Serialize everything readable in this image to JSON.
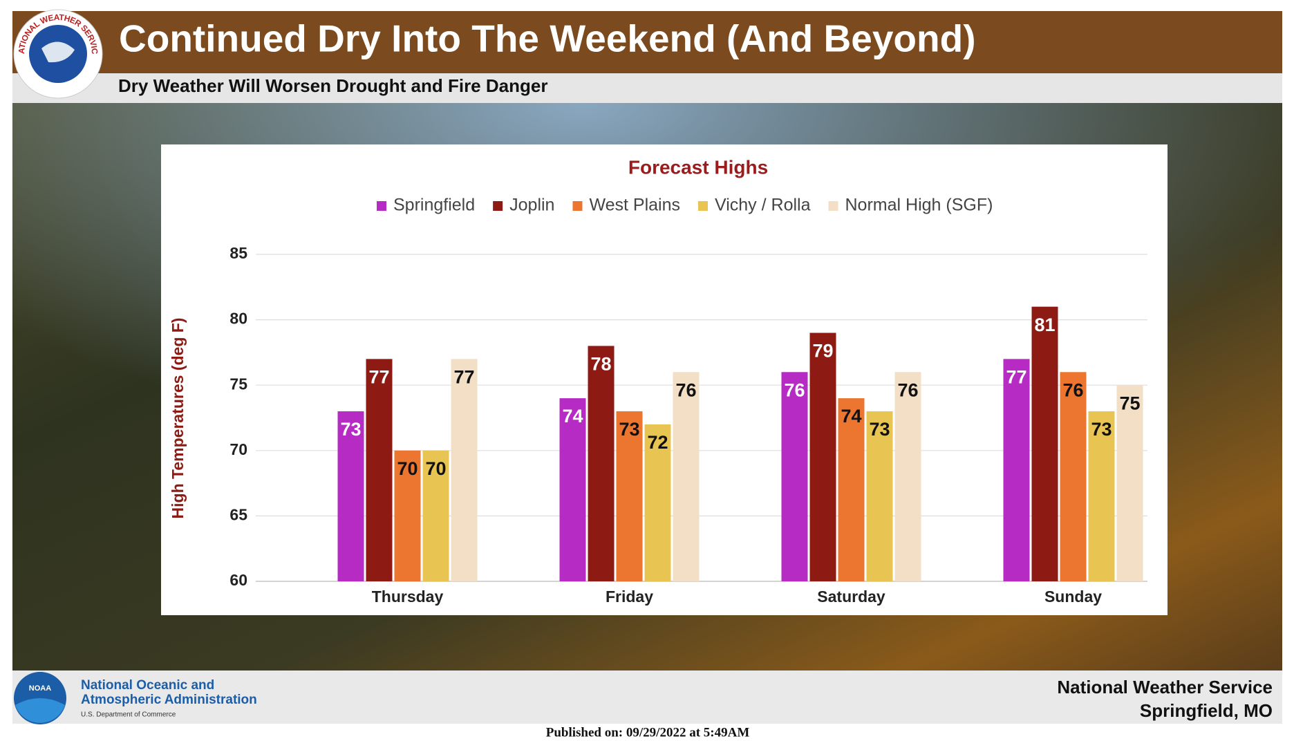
{
  "header": {
    "title": "Continued Dry Into The Weekend (And Beyond)",
    "subtitle": "Dry Weather Will Worsen Drought and Fire Danger",
    "logo_text": "NATIONAL WEATHER SERVICE"
  },
  "chart_data": {
    "type": "bar",
    "title": "Forecast Highs",
    "y_label": "High Temperatures (deg F)",
    "categories": [
      "Thursday",
      "Friday",
      "Saturday",
      "Sunday"
    ],
    "series": [
      {
        "name": "Springfield",
        "color": "#b52bc4",
        "values": [
          73,
          74,
          76,
          77
        ]
      },
      {
        "name": "Joplin",
        "color": "#8e1a14",
        "values": [
          77,
          78,
          79,
          81
        ]
      },
      {
        "name": "West Plains",
        "color": "#ec7530",
        "values": [
          70,
          73,
          74,
          76
        ]
      },
      {
        "name": "Vichy / Rolla",
        "color": "#e8c452",
        "values": [
          70,
          72,
          73,
          73
        ]
      },
      {
        "name": "Normal High (SGF)",
        "color": "#f2dfc6",
        "values": [
          77,
          76,
          76,
          75
        ]
      }
    ],
    "ylim": [
      60,
      85
    ],
    "yticks": [
      60,
      65,
      70,
      75,
      80,
      85
    ],
    "grid": true,
    "legend": "top"
  },
  "footer": {
    "noaa_logo_text": "NOAA",
    "agency_line1": "National Oceanic and",
    "agency_line2": "Atmospheric Administration",
    "department": "U.S. Department of Commerce",
    "office_line1": "National Weather Service",
    "office_line2": "Springfield, MO",
    "published": "Published on: 09/29/2022 at 5:49AM"
  }
}
